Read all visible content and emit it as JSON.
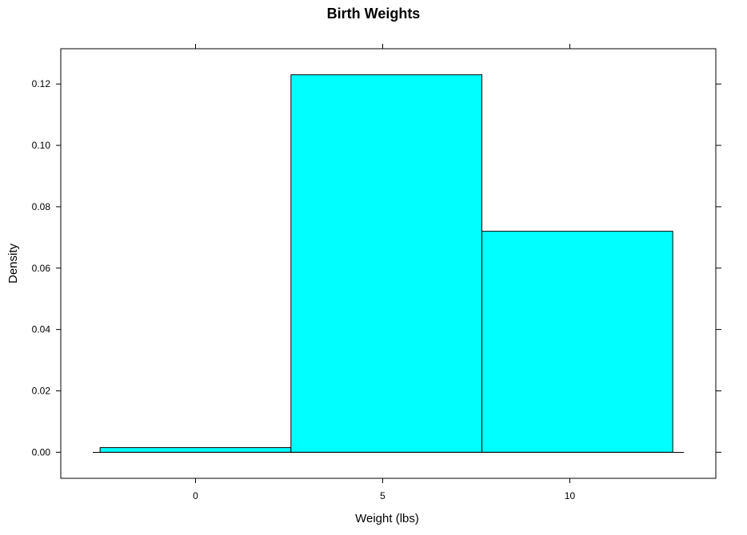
{
  "chart_data": {
    "type": "bar",
    "title": "Birth Weights",
    "xlabel": "Weight (lbs)",
    "ylabel": "Density",
    "bins": [
      {
        "x0": -2.55,
        "x1": 2.55,
        "density": 0.0015
      },
      {
        "x0": 2.55,
        "x1": 7.65,
        "density": 0.123
      },
      {
        "x0": 7.65,
        "x1": 12.75,
        "density": 0.072
      }
    ],
    "x_ticks": [
      0,
      5,
      10
    ],
    "x_tick_labels": [
      "0",
      "5",
      "10"
    ],
    "y_ticks": [
      0,
      0.02,
      0.04,
      0.06,
      0.08,
      0.1,
      0.12
    ],
    "y_tick_labels": [
      "0.00",
      "0.02",
      "0.04",
      "0.06",
      "0.08",
      "0.10",
      "0.12"
    ],
    "xlim": [
      -3.6,
      13.9
    ],
    "ylim": [
      -0.0085,
      0.1315
    ],
    "grid": false,
    "bar_color": "#00ffff",
    "bar_border_color": "#000000"
  }
}
